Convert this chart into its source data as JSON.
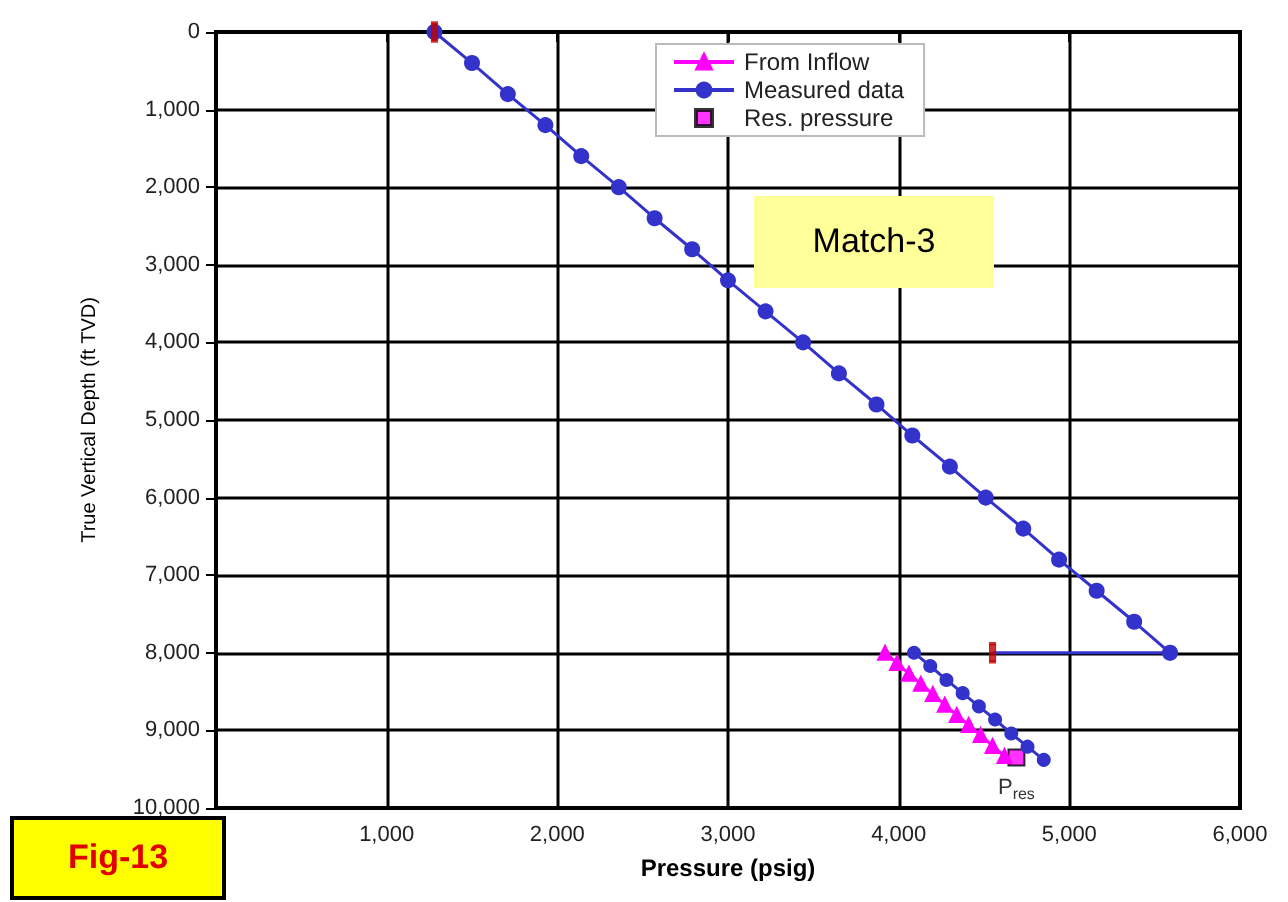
{
  "chart_data": {
    "type": "line",
    "xlabel": "Pressure (psig)",
    "ylabel": "True Vertical Depth (ft TVD)",
    "xlim": [
      0,
      6000
    ],
    "xticks": [
      {
        "value": 0,
        "label": null
      },
      {
        "value": 1000,
        "label": "1,000"
      },
      {
        "value": 2000,
        "label": "2,000"
      },
      {
        "value": 3000,
        "label": "3,000"
      },
      {
        "value": 4000,
        "label": "4,000"
      },
      {
        "value": 5000,
        "label": "5,000"
      },
      {
        "value": 6000,
        "label": "6,000"
      }
    ],
    "ylim": [
      10000,
      0
    ],
    "yticks": [
      0,
      {
        "value": 1000,
        "label": "1,000"
      },
      {
        "value": 2000,
        "label": "2,000"
      },
      {
        "value": 3000,
        "label": "3,000"
      },
      {
        "value": 4000,
        "label": "4,000"
      },
      {
        "value": 5000,
        "label": "5,000"
      },
      {
        "value": 6000,
        "label": "6,000"
      },
      {
        "value": 7000,
        "label": "7,000"
      },
      {
        "value": 8000,
        "label": "8,000"
      },
      {
        "value": 9000,
        "label": "9,000"
      },
      {
        "value": 10000,
        "label": "10,000"
      }
    ],
    "grid": true,
    "legend": "top",
    "series": [
      {
        "name": "From Inflow",
        "color": "#ff00ff",
        "marker": "triangle",
        "x": [
          3920,
          3990,
          4060,
          4130,
          4200,
          4270,
          4340,
          4410,
          4480,
          4550,
          4620
        ],
        "values": [
          8000,
          8130,
          8270,
          8400,
          8530,
          8670,
          8800,
          8930,
          9060,
          9200,
          9330
        ]
      },
      {
        "name": "Measured data",
        "color": "#3333cc",
        "marker": "circle",
        "x": [
          1280,
          1500,
          1710,
          1930,
          2140,
          2360,
          2570,
          2790,
          3000,
          3220,
          3440,
          3650,
          3870,
          4080,
          4300,
          4510,
          4730,
          4940,
          5160,
          5380,
          5590
        ],
        "values": [
          0,
          400,
          800,
          1200,
          1600,
          2000,
          2400,
          2800,
          3200,
          3600,
          4000,
          4400,
          4800,
          5200,
          5600,
          6000,
          6400,
          6800,
          7200,
          7600,
          8000
        ]
      },
      {
        "name": "Res. pressure",
        "type": "scatter",
        "color": "#ff00ff",
        "marker": "square",
        "x": [
          4690
        ],
        "values": [
          9350
        ]
      },
      {
        "color": "#3333cc",
        "marker": "none",
        "x": [
          4550,
          5590
        ],
        "values": [
          8000,
          8000
        ]
      },
      {
        "color": "#3333cc",
        "marker": "circle",
        "x": [
          4090,
          4185,
          4280,
          4375,
          4470,
          4565,
          4660,
          4755,
          4850
        ],
        "values": [
          8000,
          8170,
          8350,
          8520,
          8690,
          8860,
          9040,
          9210,
          9380
        ]
      },
      {
        "type": "scatter",
        "color": "#c00000",
        "marker": "square",
        "x": [
          1280,
          4550
        ],
        "values": [
          0,
          8000
        ]
      }
    ],
    "annotations": [
      "Match-3",
      "Fig-13",
      {
        "text": "P$_{res}$",
        "x": 4690,
        "y": 9350
      }
    ]
  }
}
